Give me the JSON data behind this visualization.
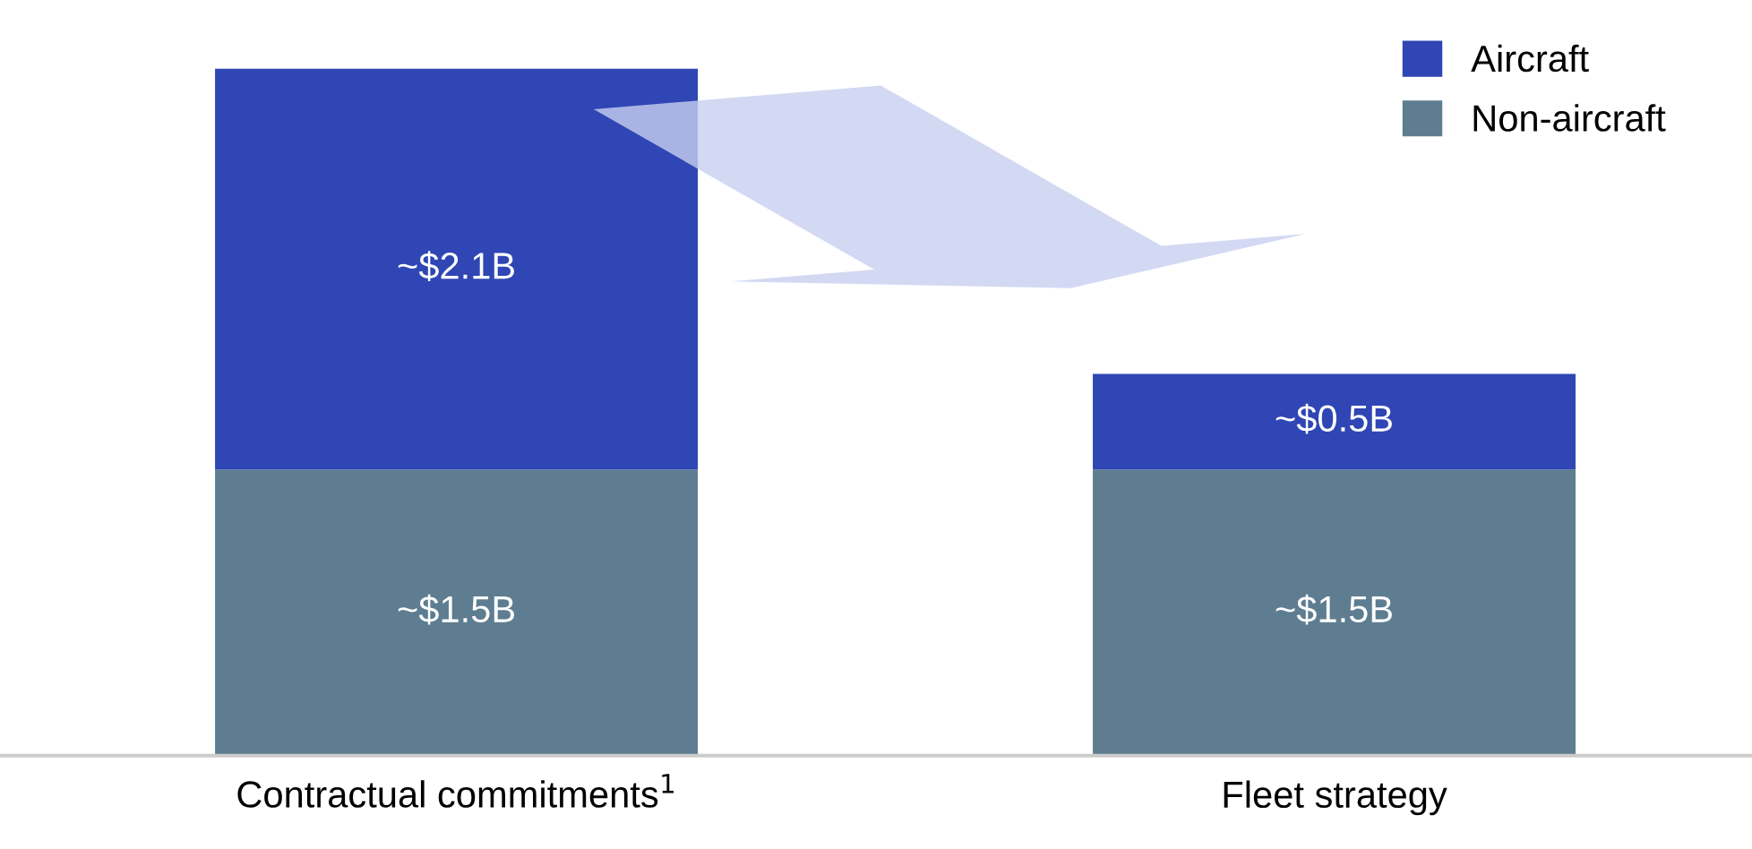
{
  "chart_data": {
    "type": "bar",
    "stacked": true,
    "categories": [
      "Contractual commitments$^{1}$",
      "Fleet strategy"
    ],
    "series": [
      {
        "name": "Non-aircraft",
        "color": "#5e7d91",
        "values": [
          1.5,
          1.5
        ],
        "value_labels": [
          "~$1.5B",
          "~$1.5B"
        ]
      },
      {
        "name": "Aircraft",
        "color": "#2f46b4",
        "values": [
          2.1,
          0.5
        ],
        "value_labels": [
          "~$2.1B",
          "~$0.5B"
        ]
      }
    ],
    "legend": "top right",
    "grid": false,
    "tick_labels": "x"
  }
}
